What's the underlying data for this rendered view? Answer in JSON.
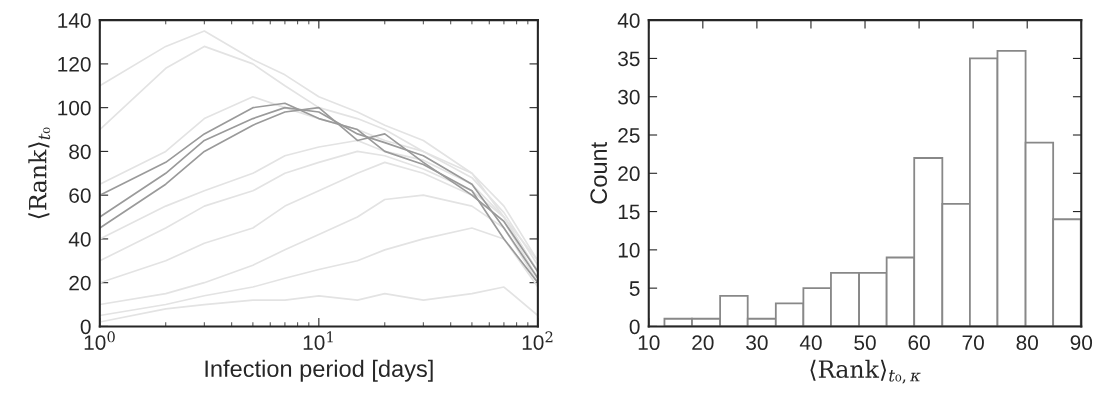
{
  "chart_data": [
    {
      "type": "line",
      "xlabel": "Infection period [days]",
      "ylabel": "⟨Rank⟩$_{t₀}$",
      "log": "x",
      "x": [
        1,
        2,
        3,
        5,
        7,
        10,
        15,
        20,
        30,
        50,
        70,
        100
      ],
      "xlim": [
        1,
        100
      ],
      "xticks": [
        {
          "value": 1,
          "label": "10$^{0}$"
        },
        {
          "value": 10,
          "label": "10$^{1}$"
        },
        {
          "value": 100,
          "label": "10$^{2}$"
        }
      ],
      "ylim": [
        0,
        140
      ],
      "yticks": [
        0,
        20,
        40,
        60,
        80,
        100,
        120,
        140
      ],
      "grid": false,
      "series": [
        {
          "color": "#e3e3e3",
          "values": [
            110,
            128,
            135,
            122,
            115,
            105,
            98,
            92,
            85,
            70,
            50,
            30
          ]
        },
        {
          "color": "#e3e3e3",
          "values": [
            90,
            118,
            128,
            120,
            110,
            100,
            95,
            90,
            80,
            68,
            52,
            28
          ]
        },
        {
          "color": "#e3e3e3",
          "values": [
            65,
            80,
            95,
            105,
            100,
            95,
            90,
            85,
            80,
            70,
            55,
            30
          ]
        },
        {
          "color": "#e3e3e3",
          "values": [
            30,
            45,
            55,
            62,
            70,
            75,
            80,
            78,
            72,
            62,
            50,
            25
          ]
        },
        {
          "color": "#e3e3e3",
          "values": [
            20,
            30,
            38,
            45,
            55,
            62,
            70,
            75,
            70,
            60,
            48,
            22
          ]
        },
        {
          "color": "#e3e3e3",
          "values": [
            10,
            15,
            20,
            28,
            35,
            42,
            50,
            58,
            60,
            55,
            45,
            20
          ]
        },
        {
          "color": "#e3e3e3",
          "values": [
            5,
            10,
            14,
            18,
            22,
            26,
            30,
            35,
            40,
            45,
            40,
            18
          ]
        },
        {
          "color": "#e3e3e3",
          "values": [
            2,
            8,
            10,
            12,
            12,
            14,
            12,
            15,
            12,
            15,
            18,
            5
          ]
        },
        {
          "color": "#e3e3e3",
          "values": [
            40,
            55,
            62,
            70,
            78,
            82,
            85,
            80,
            76,
            65,
            50,
            25
          ]
        },
        {
          "color": "#9a9a9a",
          "values": [
            50,
            70,
            85,
            95,
            100,
            98,
            88,
            84,
            78,
            65,
            45,
            22
          ]
        },
        {
          "color": "#9a9a9a",
          "values": [
            60,
            75,
            88,
            100,
            102,
            95,
            90,
            80,
            74,
            62,
            40,
            20
          ]
        },
        {
          "color": "#9a9a9a",
          "values": [
            45,
            65,
            80,
            92,
            98,
            100,
            85,
            88,
            75,
            60,
            48,
            25
          ]
        }
      ]
    },
    {
      "type": "histogram",
      "xlabel": "⟨Rank⟩$_{t₀,κ}$",
      "ylabel": "Count",
      "color": "#888888",
      "bins": [
        12.9,
        18.0,
        23.2,
        28.3,
        33.5,
        38.6,
        43.7,
        48.9,
        54.0,
        59.1,
        64.3,
        69.4,
        74.5,
        79.7,
        84.8,
        89.9
      ],
      "values": [
        1,
        1,
        4,
        1,
        3,
        5,
        7,
        7,
        9,
        22,
        16,
        35,
        36,
        24,
        14
      ],
      "xlim": [
        10,
        90
      ],
      "xticks": [
        10,
        20,
        30,
        40,
        50,
        60,
        70,
        80,
        90
      ],
      "ylim": [
        0,
        40
      ],
      "yticks": [
        0,
        5,
        10,
        15,
        20,
        25,
        30,
        35,
        40
      ],
      "grid": false
    }
  ]
}
